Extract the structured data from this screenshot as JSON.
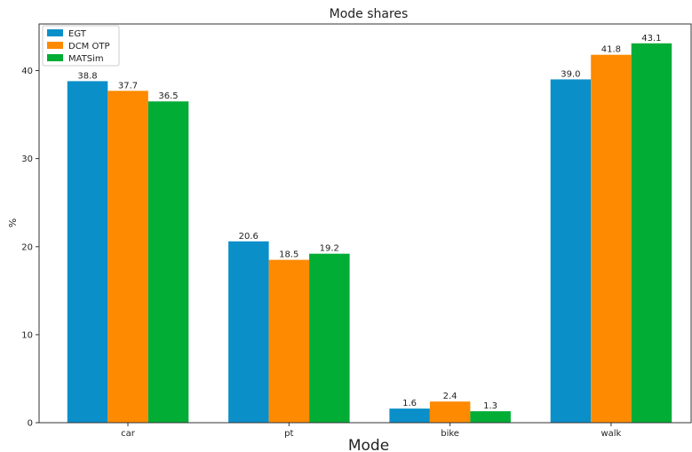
{
  "chart_data": {
    "type": "bar",
    "title": "Mode shares",
    "xlabel": "Mode",
    "ylabel": "%",
    "categories": [
      "car",
      "pt",
      "bike",
      "walk"
    ],
    "series": [
      {
        "name": "EGT",
        "color": "#0a8fc9",
        "values": [
          38.8,
          20.6,
          1.6,
          39.0
        ],
        "labels": [
          "38.8",
          "20.6",
          "1.6",
          "39.0"
        ]
      },
      {
        "name": "DCM OTP",
        "color": "#fd8a00",
        "values": [
          37.7,
          18.5,
          2.4,
          41.8
        ],
        "labels": [
          "37.7",
          "18.5",
          "2.4",
          "41.8"
        ]
      },
      {
        "name": "MATSim",
        "color": "#02ad36",
        "values": [
          36.5,
          19.2,
          1.3,
          43.1
        ],
        "labels": [
          "36.5",
          "19.2",
          "1.3",
          "43.1"
        ]
      }
    ],
    "yticks": [
      0,
      10,
      20,
      30,
      40
    ],
    "ytick_labels": [
      "0",
      "10",
      "20",
      "30",
      "40"
    ],
    "ylim": [
      0,
      45.3
    ],
    "grid": false,
    "legend": "top-left"
  }
}
